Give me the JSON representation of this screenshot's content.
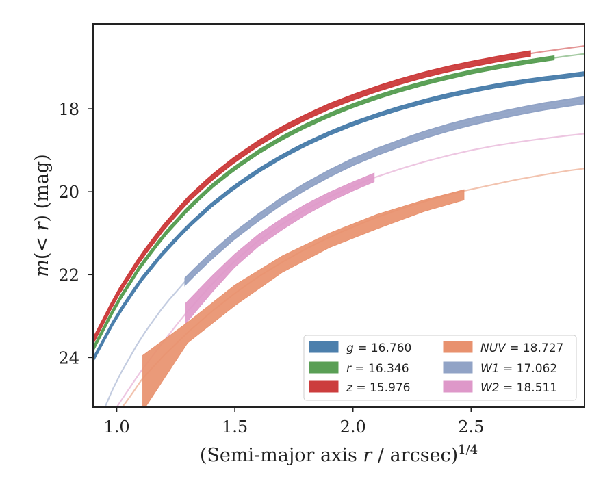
{
  "chart_data": {
    "type": "line",
    "xlabel_main": "(Semi-major axis ",
    "xlabel_var": "r",
    "xlabel_rest": " / arcsec)",
    "xlabel_sup": "1/4",
    "ylabel_main": "m",
    "ylabel_rest": "(< ",
    "ylabel_var": "r",
    "ylabel_end": ") (mag)",
    "xlim": [
      0.9,
      2.98
    ],
    "ylim": [
      25.2,
      15.95
    ],
    "y_inverted": true,
    "xticks": [
      1.0,
      1.5,
      2.0,
      2.5
    ],
    "xtick_labels": [
      "1.0",
      "1.5",
      "2.0",
      "2.5"
    ],
    "yticks": [
      18,
      20,
      22,
      24
    ],
    "ytick_labels": [
      "18",
      "20",
      "22",
      "24"
    ],
    "legend_position": "lower-right",
    "series": [
      {
        "name": "g = 16.760",
        "legend_var": "g",
        "legend_value": "= 16.760",
        "color": "#4c7fac",
        "x": [
          0.9,
          1.0,
          1.1,
          1.2,
          1.3,
          1.4,
          1.5,
          1.6,
          1.7,
          1.8,
          1.9,
          2.0,
          2.1,
          2.2,
          2.3,
          2.4,
          2.5,
          2.6,
          2.7,
          2.8,
          2.9,
          2.98
        ],
        "y": [
          24.05,
          23.0,
          22.15,
          21.45,
          20.85,
          20.33,
          19.88,
          19.49,
          19.15,
          18.85,
          18.59,
          18.36,
          18.16,
          17.98,
          17.82,
          17.68,
          17.56,
          17.45,
          17.36,
          17.28,
          17.21,
          17.15
        ],
        "x_observed_max": 2.98,
        "band": 0.04
      },
      {
        "name": "r = 16.346",
        "legend_var": "r",
        "legend_value": "= 16.346",
        "color": "#5a9f55",
        "x": [
          0.9,
          1.0,
          1.1,
          1.2,
          1.3,
          1.4,
          1.5,
          1.6,
          1.7,
          1.8,
          1.9,
          2.0,
          2.1,
          2.2,
          2.3,
          2.4,
          2.5,
          2.6,
          2.7,
          2.8,
          2.9,
          2.98
        ],
        "y": [
          23.8,
          22.7,
          21.8,
          21.05,
          20.42,
          19.88,
          19.43,
          19.04,
          18.7,
          18.41,
          18.15,
          17.92,
          17.72,
          17.54,
          17.38,
          17.24,
          17.11,
          17.0,
          16.9,
          16.81,
          16.73,
          16.67
        ],
        "x_observed_max": 2.85,
        "band": 0.04
      },
      {
        "name": "z = 15.976",
        "legend_var": "z",
        "legend_value": "= 15.976",
        "color": "#cc3d3d",
        "x": [
          0.9,
          1.0,
          1.1,
          1.2,
          1.3,
          1.4,
          1.5,
          1.6,
          1.7,
          1.8,
          1.9,
          2.0,
          2.1,
          2.2,
          2.3,
          2.4,
          2.5,
          2.6,
          2.7,
          2.8,
          2.9,
          2.98
        ],
        "y": [
          23.6,
          22.5,
          21.6,
          20.85,
          20.2,
          19.67,
          19.22,
          18.83,
          18.49,
          18.2,
          17.94,
          17.72,
          17.52,
          17.34,
          17.18,
          17.04,
          16.92,
          16.81,
          16.71,
          16.62,
          16.54,
          16.48
        ],
        "x_observed_max": 2.75,
        "band": 0.06
      },
      {
        "name": "NUV = 18.727",
        "legend_var": "NUV",
        "legend_value": "= 18.727",
        "color": "#e8916e",
        "x": [
          0.97,
          1.05,
          1.11,
          1.2,
          1.3,
          1.4,
          1.5,
          1.6,
          1.7,
          1.8,
          1.9,
          2.0,
          2.1,
          2.2,
          2.3,
          2.4,
          2.47,
          2.6,
          2.7,
          2.8,
          2.9,
          2.98
        ],
        "y": [
          25.6,
          25.0,
          24.5,
          23.95,
          23.4,
          22.9,
          22.45,
          22.05,
          21.7,
          21.38,
          21.1,
          20.85,
          20.62,
          20.42,
          20.24,
          20.08,
          19.98,
          19.82,
          19.7,
          19.6,
          19.5,
          19.44
        ],
        "x_observed_min": 1.11,
        "x_observed_max": 2.47,
        "band_x": [
          1.11,
          1.3,
          1.5,
          1.7,
          1.9,
          2.1,
          2.3,
          2.47
        ],
        "band_y_bright": [
          23.95,
          23.15,
          22.25,
          21.55,
          21.0,
          20.55,
          20.2,
          19.95
        ],
        "band_y_faint": [
          25.3,
          23.65,
          22.75,
          21.95,
          21.35,
          20.9,
          20.48,
          20.2
        ]
      },
      {
        "name": "W1 = 17.062",
        "legend_var": "W1",
        "legend_value": "= 17.062",
        "color": "#91a3c6",
        "x": [
          0.95,
          1.0,
          1.1,
          1.2,
          1.3,
          1.4,
          1.5,
          1.6,
          1.7,
          1.8,
          1.9,
          2.0,
          2.1,
          2.2,
          2.3,
          2.4,
          2.5,
          2.6,
          2.7,
          2.8,
          2.9,
          2.98
        ],
        "y": [
          25.2,
          24.55,
          23.55,
          22.75,
          22.1,
          21.55,
          21.05,
          20.62,
          20.22,
          19.87,
          19.56,
          19.28,
          19.04,
          18.83,
          18.63,
          18.46,
          18.31,
          18.18,
          18.06,
          17.95,
          17.86,
          17.79
        ],
        "x_observed_min": 1.29,
        "x_observed_max": 2.98,
        "band": 0.08
      },
      {
        "name": "W2 = 18.511",
        "legend_var": "W2",
        "legend_value": "= 18.511",
        "color": "#de98c9",
        "x": [
          1.0,
          1.1,
          1.2,
          1.29,
          1.4,
          1.5,
          1.6,
          1.7,
          1.8,
          1.9,
          2.0,
          2.09,
          2.2,
          2.3,
          2.4,
          2.5,
          2.6,
          2.7,
          2.8,
          2.9,
          2.98
        ],
        "y": [
          25.2,
          24.35,
          23.6,
          22.95,
          22.25,
          21.67,
          21.18,
          20.78,
          20.43,
          20.13,
          19.87,
          19.66,
          19.45,
          19.28,
          19.13,
          19.0,
          18.89,
          18.8,
          18.72,
          18.65,
          18.6
        ],
        "x_observed_min": 1.29,
        "x_observed_max": 2.09,
        "band_x": [
          1.29,
          1.4,
          1.5,
          1.6,
          1.7,
          1.8,
          1.9,
          2.0,
          2.09
        ],
        "band_y_bright": [
          22.7,
          22.05,
          21.5,
          21.03,
          20.64,
          20.3,
          20.01,
          19.76,
          19.55
        ],
        "band_y_faint": [
          23.2,
          22.45,
          21.82,
          21.32,
          20.92,
          20.56,
          20.25,
          19.98,
          19.76
        ]
      }
    ]
  }
}
